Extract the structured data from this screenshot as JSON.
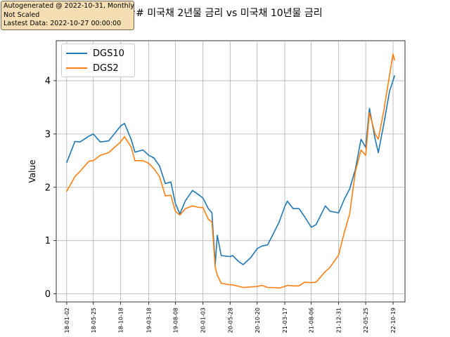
{
  "info_box": {
    "line1": "Autogenerated @ 2022-10-31, Monthly",
    "line2": "Not Scaled",
    "line3": "Lastest Data: 2022-10-27 00:00:00"
  },
  "chart_data": {
    "type": "line",
    "title": "## 미국채 2년물 금리 vs 미국채 10년물 금리",
    "xlabel": "",
    "ylabel": "Value",
    "xlim": [
      "2017-11-07",
      "2022-12-22"
    ],
    "ylim": [
      -0.15,
      4.75
    ],
    "grid": true,
    "legend_position": "upper-left",
    "x_ticks": [
      "18-01-02",
      "18-05-25",
      "18-10-18",
      "19-03-18",
      "19-08-08",
      "20-01-03",
      "20-05-28",
      "20-10-20",
      "21-03-17",
      "21-08-06",
      "21-12-31",
      "22-05-25",
      "22-10-19"
    ],
    "y_ticks": [
      0,
      1,
      2,
      3,
      4
    ],
    "x": [
      "2018-01-02",
      "2018-02-15",
      "2018-03-15",
      "2018-05-01",
      "2018-05-25",
      "2018-07-01",
      "2018-08-15",
      "2018-10-18",
      "2018-11-08",
      "2018-12-15",
      "2019-01-03",
      "2019-02-15",
      "2019-03-18",
      "2019-04-15",
      "2019-05-15",
      "2019-06-15",
      "2019-07-15",
      "2019-08-08",
      "2019-09-01",
      "2019-10-01",
      "2019-11-08",
      "2019-12-15",
      "2020-01-03",
      "2020-02-01",
      "2020-02-20",
      "2020-03-09",
      "2020-03-20",
      "2020-04-10",
      "2020-05-28",
      "2020-06-10",
      "2020-07-15",
      "2020-08-06",
      "2020-09-15",
      "2020-10-20",
      "2020-11-15",
      "2020-12-15",
      "2021-01-15",
      "2021-02-15",
      "2021-03-17",
      "2021-03-31",
      "2021-05-01",
      "2021-06-01",
      "2021-07-01",
      "2021-08-06",
      "2021-09-01",
      "2021-10-21",
      "2021-11-15",
      "2021-12-31",
      "2022-01-31",
      "2022-02-28",
      "2022-03-31",
      "2022-04-30",
      "2022-05-25",
      "2022-06-14",
      "2022-07-15",
      "2022-08-01",
      "2022-08-31",
      "2022-09-30",
      "2022-10-19",
      "2022-10-27"
    ],
    "series": [
      {
        "name": "DGS10",
        "color": "#1f77b4",
        "values": [
          2.46,
          2.86,
          2.85,
          2.96,
          3.0,
          2.85,
          2.87,
          3.15,
          3.2,
          2.89,
          2.66,
          2.7,
          2.6,
          2.55,
          2.4,
          2.07,
          2.1,
          1.7,
          1.5,
          1.75,
          1.94,
          1.85,
          1.8,
          1.6,
          1.52,
          0.55,
          1.1,
          0.72,
          0.7,
          0.72,
          0.6,
          0.55,
          0.68,
          0.85,
          0.9,
          0.92,
          1.13,
          1.35,
          1.64,
          1.74,
          1.6,
          1.6,
          1.45,
          1.25,
          1.3,
          1.65,
          1.55,
          1.52,
          1.78,
          1.97,
          2.34,
          2.9,
          2.75,
          3.48,
          2.9,
          2.65,
          3.2,
          3.8,
          4.0,
          4.1
        ]
      },
      {
        "name": "DGS2",
        "color": "#ff7f0e",
        "values": [
          1.92,
          2.2,
          2.3,
          2.49,
          2.5,
          2.6,
          2.65,
          2.85,
          2.95,
          2.75,
          2.5,
          2.5,
          2.45,
          2.35,
          2.2,
          1.84,
          1.85,
          1.55,
          1.48,
          1.6,
          1.65,
          1.62,
          1.62,
          1.4,
          1.35,
          0.5,
          0.35,
          0.2,
          0.17,
          0.17,
          0.14,
          0.12,
          0.13,
          0.14,
          0.16,
          0.12,
          0.12,
          0.11,
          0.14,
          0.16,
          0.15,
          0.15,
          0.22,
          0.21,
          0.22,
          0.42,
          0.5,
          0.73,
          1.16,
          1.5,
          2.3,
          2.7,
          2.6,
          3.4,
          3.0,
          2.9,
          3.45,
          4.1,
          4.5,
          4.38
        ]
      }
    ]
  }
}
